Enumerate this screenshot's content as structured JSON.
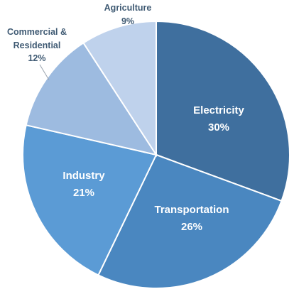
{
  "chart_data": {
    "type": "pie",
    "title": "",
    "start_angle_deg": 0,
    "direction": "clockwise",
    "slices": [
      {
        "key": "electricity",
        "label": "Electricity",
        "value": 30,
        "value_label": "30%",
        "color": "#3f6f9e",
        "label_placement": "inside"
      },
      {
        "key": "transportation",
        "label": "Transportation",
        "value": 26,
        "value_label": "26%",
        "color": "#4a87c0",
        "label_placement": "inside"
      },
      {
        "key": "industry",
        "label": "Industry",
        "value": 21,
        "value_label": "21%",
        "color": "#5b9bd5",
        "label_placement": "inside"
      },
      {
        "key": "commercial-residential",
        "label_lines": [
          "Commercial &",
          "Residential"
        ],
        "value": 12,
        "value_label": "12%",
        "color": "#9dbbe0",
        "label_placement": "outside-leader"
      },
      {
        "key": "agriculture",
        "label": "Agriculture",
        "value": 9,
        "value_label": "9%",
        "color": "#bfd2ec",
        "label_placement": "outside-top"
      }
    ]
  }
}
